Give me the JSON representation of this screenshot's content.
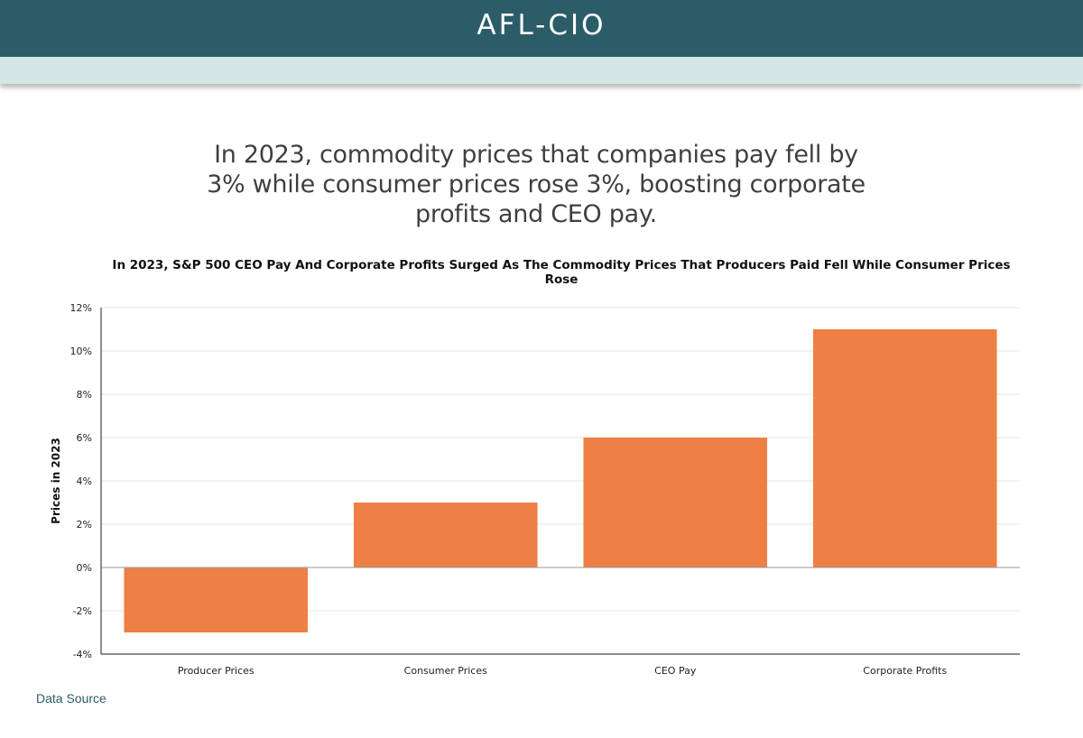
{
  "header": {
    "brand": "AFL-CIO"
  },
  "headline": "In 2023, commodity prices that companies pay fell by 3% while consumer prices rose 3%, boosting corporate profits and CEO pay.",
  "footer": {
    "data_source_label": "Data Source"
  },
  "colors": {
    "header_bg": "#2b5c68",
    "subbar_bg": "#d3e5e5",
    "bar": "#ee8045",
    "link": "#2b5c68"
  },
  "chart_data": {
    "type": "bar",
    "title": "In 2023, S&P 500 CEO Pay And Corporate Profits Surged As The Commodity Prices That Producers Paid Fell While Consumer Prices Rose",
    "ylabel": "Prices in 2023",
    "xlabel": "",
    "categories": [
      "Producer Prices",
      "Consumer Prices",
      "CEO Pay",
      "Corporate Profits"
    ],
    "values": [
      -3,
      3,
      6,
      11
    ],
    "ylim": [
      -4,
      12
    ],
    "yticks": [
      -4,
      -2,
      0,
      2,
      4,
      6,
      8,
      10,
      12
    ],
    "ytick_labels": [
      "-4%",
      "-2%",
      "0%",
      "2%",
      "4%",
      "6%",
      "8%",
      "10%",
      "12%"
    ],
    "grid": true,
    "legend": "none"
  }
}
